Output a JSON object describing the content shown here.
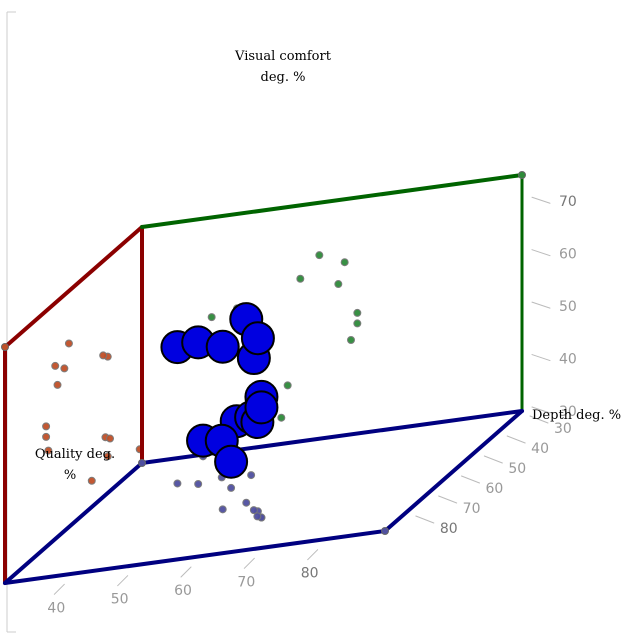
{
  "chart_data": {
    "type": "scatter",
    "title": "",
    "axes": {
      "x": {
        "label_lines": [
          "Quality deg.",
          "%"
        ],
        "range": [
          30,
          90
        ],
        "ticks": [
          "40",
          "50",
          "60",
          "70",
          "80"
        ]
      },
      "y": {
        "label_lines": [
          "Visual comfort",
          "deg. %"
        ],
        "range": [
          30,
          75
        ],
        "ticks": [
          "30",
          "40",
          "50",
          "60",
          "70"
        ]
      },
      "z": {
        "label": "Depth deg. %",
        "range": [
          30,
          90
        ],
        "ticks": [
          "30",
          "40",
          "50",
          "60",
          "70",
          "80"
        ]
      }
    },
    "colors": {
      "marker": "#0000e0",
      "marker_edge": "#000000",
      "x_axis": "#8b0000",
      "y_axis": "#006400",
      "z_axis": "#000080",
      "shadow_left": "#c05028",
      "shadow_right": "#2e8b3a",
      "shadow_floor": "#5050a0"
    },
    "points": [
      {
        "x": 41,
        "y": 56,
        "z": 45
      },
      {
        "x": 45,
        "y": 57,
        "z": 47
      },
      {
        "x": 55,
        "y": 61,
        "z": 64
      },
      {
        "x": 58,
        "y": 65,
        "z": 62
      },
      {
        "x": 62,
        "y": 63,
        "z": 68
      },
      {
        "x": 61,
        "y": 59,
        "z": 67
      },
      {
        "x": 64,
        "y": 53,
        "z": 72
      },
      {
        "x": 64,
        "y": 51,
        "z": 72
      },
      {
        "x": 63,
        "y": 48,
        "z": 71
      },
      {
        "x": 53,
        "y": 41,
        "z": 46
      },
      {
        "x": 50,
        "y": 40,
        "z": 44
      },
      {
        "x": 48,
        "y": 37,
        "z": 45
      },
      {
        "x": 52,
        "y": 35,
        "z": 52
      },
      {
        "x": 40,
        "y": 33,
        "z": 31
      }
    ]
  }
}
